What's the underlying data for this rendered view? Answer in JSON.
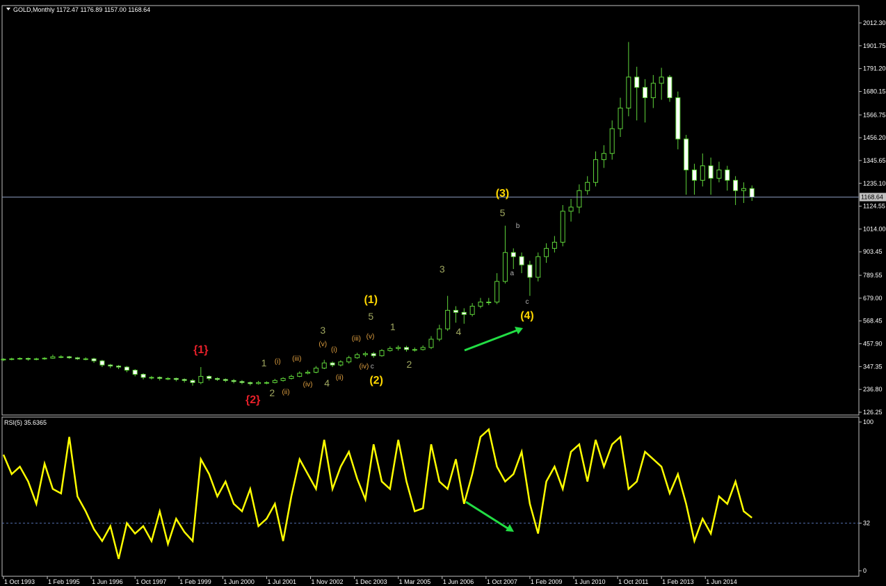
{
  "chart_data": [
    {
      "type": "candlestick",
      "title": "GOLD,Monthly",
      "quote": [
        1172.47,
        1176.89,
        {
          "value": 1157,
          "label": "1157.00"
        },
        1168.64
      ],
      "color": "#5fd43a",
      "up_fill": "#000000",
      "down_fill": "#ffffff",
      "x": [
        0,
        3,
        6,
        9,
        12,
        15,
        18,
        21,
        24,
        27,
        30,
        33,
        36,
        39,
        42,
        45,
        48,
        51,
        54,
        57,
        60,
        63,
        66,
        69,
        72,
        75,
        78,
        81,
        84,
        87,
        90,
        93,
        96,
        99,
        102,
        105,
        108,
        111,
        114,
        117,
        120,
        123,
        126,
        129,
        132,
        135,
        138,
        141,
        144,
        147,
        150,
        153,
        156,
        159,
        162,
        165,
        168,
        171,
        174,
        177,
        180,
        183,
        186,
        189,
        192,
        195,
        198,
        201,
        204,
        207,
        210,
        213,
        216,
        219,
        222,
        225,
        228,
        231,
        234,
        237,
        240,
        243,
        246,
        249,
        252,
        255,
        258,
        261,
        264,
        267,
        270,
        273
      ],
      "open": [
        380,
        383,
        385,
        387,
        383,
        385,
        388,
        395,
        395,
        390,
        385,
        385,
        375,
        355,
        350,
        345,
        330,
        310,
        295,
        295,
        290,
        290,
        285,
        280,
        270,
        300,
        290,
        285,
        280,
        275,
        270,
        265,
        270,
        270,
        280,
        290,
        300,
        315,
        320,
        340,
        365,
        355,
        370,
        390,
        405,
        410,
        400,
        425,
        435,
        440,
        430,
        430,
        440,
        480,
        530,
        620,
        610,
        600,
        640,
        660,
        660,
        760,
        900,
        880,
        840,
        780,
        880,
        920,
        950,
        1100,
        1120,
        1200,
        1240,
        1350,
        1380,
        1500,
        1600,
        1750,
        1700,
        1650,
        1720,
        1750,
        1650,
        1450,
        1300,
        1250,
        1320,
        1260,
        1300,
        1250,
        1200,
        1210
      ],
      "high": [
        388,
        390,
        392,
        391,
        390,
        393,
        405,
        402,
        399,
        394,
        392,
        390,
        380,
        360,
        355,
        350,
        335,
        315,
        302,
        300,
        296,
        294,
        290,
        287,
        345,
        305,
        295,
        290,
        287,
        282,
        275,
        278,
        276,
        288,
        296,
        308,
        324,
        330,
        350,
        380,
        372,
        378,
        400,
        414,
        420,
        418,
        432,
        445,
        450,
        448,
        440,
        450,
        495,
        550,
        690,
        640,
        630,
        655,
        680,
        680,
        800,
        1030,
        920,
        900,
        860,
        900,
        945,
        980,
        1130,
        1160,
        1230,
        1270,
        1390,
        1420,
        1540,
        1650,
        1920,
        1800,
        1740,
        1760,
        1795,
        1760,
        1680,
        1470,
        1330,
        1380,
        1360,
        1340,
        1320,
        1270,
        1240,
        1225
      ],
      "low": [
        374,
        378,
        380,
        376,
        378,
        380,
        385,
        388,
        385,
        380,
        378,
        365,
        345,
        340,
        335,
        320,
        300,
        285,
        285,
        280,
        282,
        276,
        270,
        255,
        262,
        280,
        278,
        272,
        266,
        262,
        256,
        260,
        262,
        266,
        275,
        285,
        296,
        310,
        315,
        335,
        345,
        348,
        362,
        385,
        395,
        390,
        395,
        420,
        425,
        420,
        420,
        425,
        432,
        470,
        520,
        560,
        555,
        590,
        630,
        645,
        650,
        750,
        820,
        800,
        690,
        760,
        850,
        900,
        930,
        1050,
        1090,
        1180,
        1220,
        1310,
        1350,
        1460,
        1560,
        1540,
        1530,
        1600,
        1640,
        1630,
        1400,
        1180,
        1180,
        1220,
        1180,
        1240,
        1200,
        1130,
        1140,
        1150
      ],
      "close": [
        383,
        385,
        387,
        383,
        385,
        388,
        395,
        395,
        390,
        385,
        385,
        375,
        355,
        350,
        345,
        330,
        310,
        295,
        295,
        290,
        290,
        285,
        280,
        270,
        300,
        290,
        285,
        280,
        275,
        270,
        265,
        270,
        270,
        280,
        290,
        300,
        315,
        320,
        340,
        365,
        355,
        370,
        390,
        405,
        410,
        400,
        425,
        435,
        440,
        430,
        430,
        440,
        480,
        530,
        620,
        610,
        600,
        640,
        660,
        660,
        760,
        900,
        880,
        840,
        780,
        880,
        920,
        950,
        1100,
        1120,
        1200,
        1240,
        1350,
        1380,
        1500,
        1600,
        1750,
        1700,
        1650,
        1720,
        1750,
        1650,
        1450,
        1300,
        1250,
        1320,
        1260,
        1300,
        1250,
        1200,
        1210,
        1168.64
      ],
      "xlim": [
        -0.5,
        312
      ],
      "ylim": [
        112.8,
        2096.5
      ],
      "yticks": [
        126.25,
        {
          "value": 236.8,
          "label": "236.80"
        },
        347.35,
        {
          "value": 457.9,
          "label": "457.90"
        },
        568.45,
        {
          "value": 679,
          "label": "679.00"
        },
        789.55,
        903.45,
        {
          "value": 1014,
          "label": "1014.00"
        },
        1124.55,
        {
          "value": 1235.1,
          "label": "1235.10"
        },
        1345.65,
        {
          "value": 1456.2,
          "label": "1456.20"
        },
        1566.75,
        1680.15,
        {
          "value": 1791.2,
          "label": "1791.20"
        },
        1901.75,
        {
          "value": 2012.3,
          "label": "2012.30"
        }
      ],
      "annotations": [
        {
          "text": "{1}",
          "x": 72,
          "y": 412,
          "color": "#e8202a"
        },
        {
          "text": "{2}",
          "x": 91,
          "y": 170,
          "color": "#e8202a"
        },
        {
          "text": "1",
          "x": 95,
          "y": 348,
          "color": "#a0a860"
        },
        {
          "text": "2",
          "x": 98,
          "y": 204,
          "color": "#a0a860"
        },
        {
          "text": "(i)",
          "x": 100,
          "y": 362,
          "color": "#e0a040"
        },
        {
          "text": "(ii)",
          "x": 103,
          "y": 214,
          "color": "#e0a040"
        },
        {
          "text": "(iii)",
          "x": 107,
          "y": 375,
          "color": "#e0a040"
        },
        {
          "text": "(iv)",
          "x": 111,
          "y": 251,
          "color": "#e0a040"
        },
        {
          "text": "3",
          "x": 116.5,
          "y": 507,
          "color": "#a0a860"
        },
        {
          "text": "(v)",
          "x": 116.5,
          "y": 446,
          "color": "#e0a040"
        },
        {
          "text": "4",
          "x": 118,
          "y": 251,
          "color": "#a0a860"
        },
        {
          "text": "(i)",
          "x": 120.6,
          "y": 419,
          "color": "#e0a040"
        },
        {
          "text": "(ii)",
          "x": 122.6,
          "y": 284,
          "color": "#e0a040"
        },
        {
          "text": "(iii)",
          "x": 128.7,
          "y": 473,
          "color": "#e0a040"
        },
        {
          "text": "(v)",
          "x": 133.8,
          "y": 483,
          "color": "#e0a040"
        },
        {
          "text": "5",
          "x": 134,
          "y": 574,
          "color": "#a0a860"
        },
        {
          "text": "(1)",
          "x": 134,
          "y": 655,
          "color": "#ffd700"
        },
        {
          "text": "(iv)",
          "x": 131.5,
          "y": 338,
          "color": "#e0a040"
        },
        {
          "text": "c",
          "x": 134.5,
          "y": 338,
          "color": "#b0b0b0"
        },
        {
          "text": "(2)",
          "x": 136,
          "y": 264,
          "color": "#ffd700"
        },
        {
          "text": "1",
          "x": 142,
          "y": 524,
          "color": "#a0a860"
        },
        {
          "text": "2",
          "x": 148,
          "y": 342,
          "color": "#a0a860"
        },
        {
          "text": "3",
          "x": 160,
          "y": 803,
          "color": "#a0a860"
        },
        {
          "text": "4",
          "x": 166,
          "y": 500,
          "color": "#a0a860"
        },
        {
          "text": "5",
          "x": 182,
          "y": 1076,
          "color": "#a0a860"
        },
        {
          "text": "(3)",
          "x": 182,
          "y": 1170,
          "color": "#ffd700"
        },
        {
          "text": "b",
          "x": 187.6,
          "y": 1019,
          "color": "#b0b0b0"
        },
        {
          "text": "a",
          "x": 185.5,
          "y": 790,
          "color": "#b0b0b0"
        },
        {
          "text": "c",
          "x": 191,
          "y": 652,
          "color": "#b0b0b0"
        },
        {
          "text": "(4)",
          "x": 191,
          "y": 578,
          "color": "#ffd700"
        }
      ]
    },
    {
      "type": "line",
      "title": "RSI(5)",
      "color": "#ffff00",
      "x": [
        0,
        3,
        6,
        9,
        12,
        15,
        18,
        21,
        24,
        27,
        30,
        33,
        36,
        39,
        42,
        45,
        48,
        51,
        54,
        57,
        60,
        63,
        66,
        69,
        72,
        75,
        78,
        81,
        84,
        87,
        90,
        93,
        96,
        99,
        102,
        105,
        108,
        111,
        114,
        117,
        120,
        123,
        126,
        129,
        132,
        135,
        138,
        141,
        144,
        147,
        150,
        153,
        156,
        159,
        162,
        165,
        168,
        171,
        174,
        177,
        180,
        183,
        186,
        189,
        192,
        195,
        198,
        201,
        204,
        207,
        210,
        213,
        216,
        219,
        222,
        225,
        228,
        231,
        234,
        237,
        240,
        243,
        246,
        249,
        252,
        255,
        258,
        261,
        264,
        267,
        270,
        273
      ],
      "values": [
        78,
        65,
        70,
        60,
        45,
        72,
        55,
        52,
        90,
        50,
        40,
        28,
        20,
        30,
        8,
        32,
        25,
        30,
        20,
        40,
        18,
        35,
        26,
        20,
        75,
        65,
        50,
        60,
        45,
        40,
        55,
        30,
        35,
        45,
        20,
        50,
        75,
        65,
        55,
        88,
        55,
        70,
        80,
        62,
        48,
        85,
        60,
        55,
        88,
        60,
        40,
        42,
        85,
        60,
        55,
        75,
        45,
        65,
        90,
        95,
        70,
        60,
        65,
        80,
        45,
        25,
        60,
        70,
        55,
        80,
        85,
        60,
        88,
        70,
        85,
        90,
        55,
        60,
        80,
        75,
        70,
        52,
        65,
        45,
        20,
        35,
        25,
        50,
        45,
        60,
        40,
        35.6365
      ],
      "level": 32,
      "xlim": [
        -0.5,
        312
      ],
      "ylim": [
        -3.7,
        103.3
      ],
      "yticks": [
        0,
        32,
        100
      ],
      "xticks": [
        {
          "value": 0,
          "label": "1 Oct 1993"
        },
        {
          "value": 16,
          "label": "1 Feb 1995"
        },
        {
          "value": 32,
          "label": "1 Jun 1996"
        },
        {
          "value": 48,
          "label": "1 Oct 1997"
        },
        {
          "value": 64,
          "label": "1 Feb 1999"
        },
        {
          "value": 80,
          "label": "1 Jun 2000"
        },
        {
          "value": 96,
          "label": "1 Jul 2001"
        },
        {
          "value": 112,
          "label": "1 Nov 2002"
        },
        {
          "value": 128,
          "label": "1 Dec 2003"
        },
        {
          "value": 144,
          "label": "1 Mar 2005"
        },
        {
          "value": 160,
          "label": "1 Jun 2006"
        },
        {
          "value": 176,
          "label": "1 Oct 2007"
        },
        {
          "value": 192,
          "label": "1 Feb 2009"
        },
        {
          "value": 208,
          "label": "1 Jun 2010"
        },
        {
          "value": 224,
          "label": "1 Oct 2011"
        },
        {
          "value": 240,
          "label": "1 Feb 2013"
        },
        {
          "value": 256,
          "label": "1 Jun 2014"
        }
      ]
    }
  ]
}
